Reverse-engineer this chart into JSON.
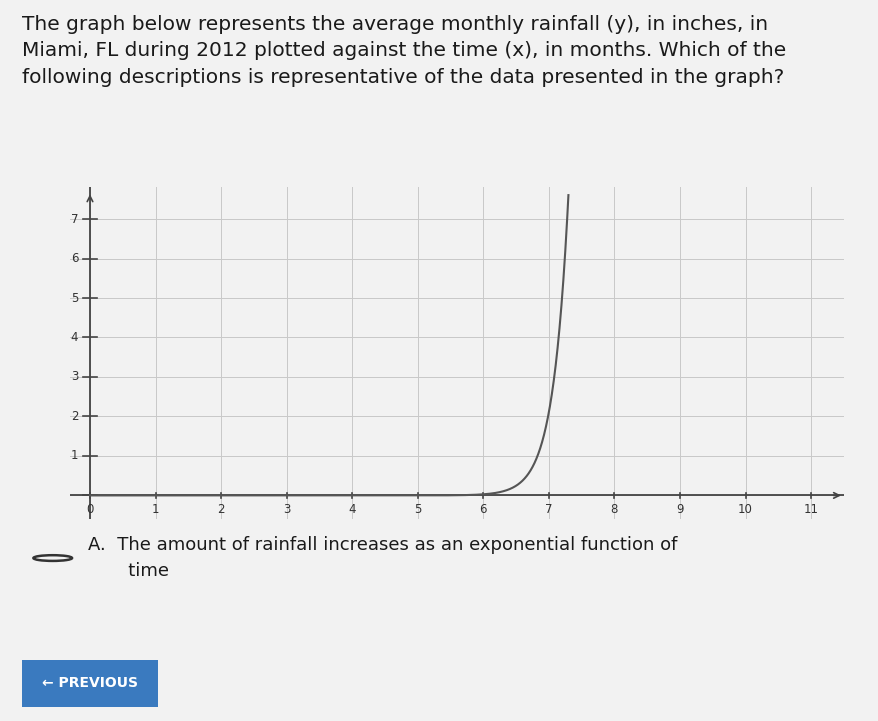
{
  "title_line1": "The graph below represents the average monthly rainfall (y), in inches, in",
  "title_line2": "Miami, FL during 2012 plotted against the time (x), in months. Which of the",
  "title_line3": "following descriptions is representative of the data presented in the graph?",
  "xlim": [
    -0.3,
    11.5
  ],
  "ylim": [
    -0.6,
    7.8
  ],
  "x_ticks": [
    0,
    1,
    2,
    3,
    4,
    5,
    6,
    7,
    8,
    9,
    10,
    11
  ],
  "y_ticks": [
    0,
    1,
    2,
    3,
    4,
    5,
    6,
    7
  ],
  "curve_color": "#555555",
  "grid_color": "#c8c8c8",
  "axis_color": "#444444",
  "background_color": "#ffffff",
  "fig_background": "#f2f2f2",
  "answer_A": "A.  The amount of rainfall increases as an exponential function of",
  "answer_A2": "      time",
  "btn_text": "← PREVIOUS",
  "btn_color": "#3a7abf",
  "exp_a": 4.3,
  "exp_b": 5.85,
  "exp_scale": 0.015,
  "title_fontsize": 14.5,
  "tick_fontsize": 8.5,
  "answer_fontsize": 13
}
